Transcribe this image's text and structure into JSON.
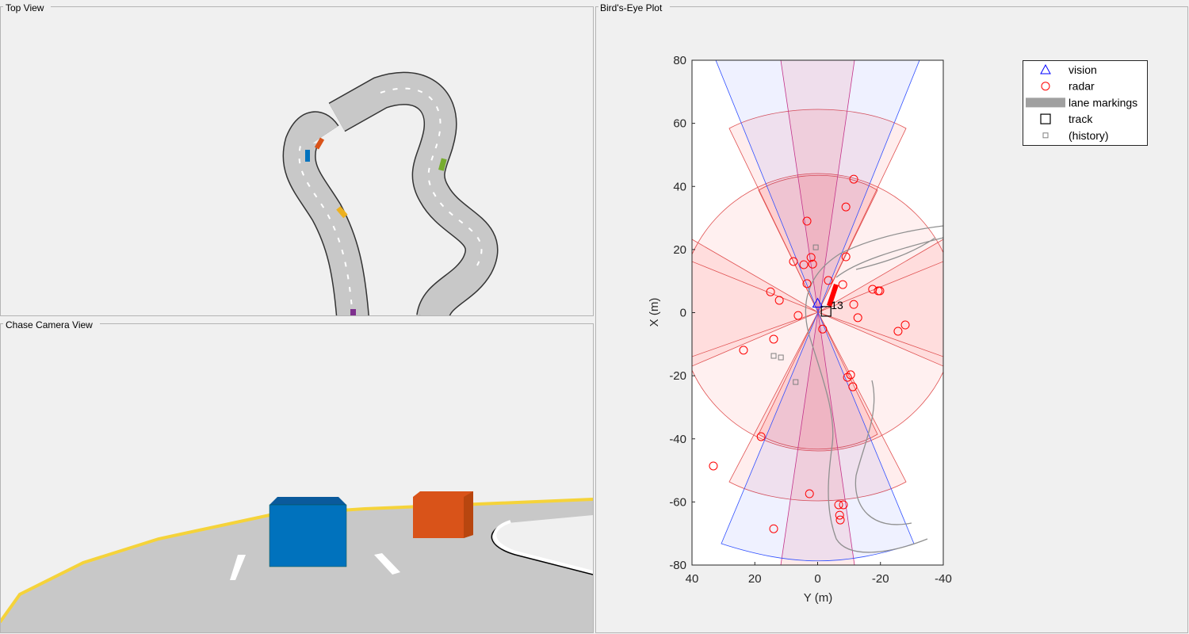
{
  "panels": {
    "top_view": "Top View",
    "chase_camera_view": "Chase Camera View",
    "birds_eye_plot": "Bird's-Eye Plot"
  },
  "chart_data": {
    "type": "scatter",
    "xlabel": "Y (m)",
    "ylabel": "X (m)",
    "xlim": [
      40,
      -40
    ],
    "ylim": [
      -80,
      80
    ],
    "xticks": [
      40,
      20,
      0,
      -20,
      -40
    ],
    "yticks": [
      80,
      60,
      40,
      20,
      0,
      -20,
      -40,
      -60,
      -80
    ],
    "legend": "outside-right",
    "series": [
      {
        "name": "vision",
        "color": "#0000ff",
        "marker": "triangle",
        "x": [
          0
        ],
        "y": [
          3
        ]
      },
      {
        "name": "radar",
        "color": "#ff0000",
        "marker": "circle",
        "x": [
          -11.5,
          -9,
          3.4,
          7.7,
          2.1,
          4.4,
          1.6,
          -9,
          -3.4,
          3.4,
          -8,
          15,
          12.2,
          -11.5,
          -17.5,
          -19.3,
          -19.8,
          6.2,
          -12.8,
          -27.9,
          -25.6,
          -1.6,
          14,
          23.6,
          -10.5,
          -9.5,
          -11.2,
          18,
          33.2,
          2.6,
          -6.7,
          -8.2,
          -7,
          -7.2,
          14
        ],
        "y": [
          42.3,
          33.5,
          29,
          16.2,
          17.5,
          15.2,
          15.4,
          17.7,
          10.2,
          9.2,
          8.9,
          6.6,
          3.9,
          2.6,
          7.4,
          6.9,
          6.9,
          -0.9,
          -1.6,
          -3.9,
          -5.9,
          -5.2,
          -8.4,
          -11.9,
          -19.7,
          -20.5,
          -23.5,
          -39.3,
          -48.6,
          -57.4,
          -60.9,
          -60.9,
          -64.2,
          -65.7,
          -68.5
        ]
      },
      {
        "name": "lane markings",
        "color": "#a0a0a0",
        "marker": "patch",
        "x": [],
        "y": []
      },
      {
        "name": "track",
        "color": "#000000",
        "marker": "square",
        "x": [
          -2.7
        ],
        "y": [
          0.4
        ],
        "labels": [
          "13"
        ]
      },
      {
        "name": "(history)",
        "color": "#808080",
        "marker": "small-square",
        "x": [
          0.6,
          14,
          11.7,
          7
        ],
        "y": [
          20.7,
          -13.7,
          -14.2,
          -22
        ]
      }
    ]
  }
}
